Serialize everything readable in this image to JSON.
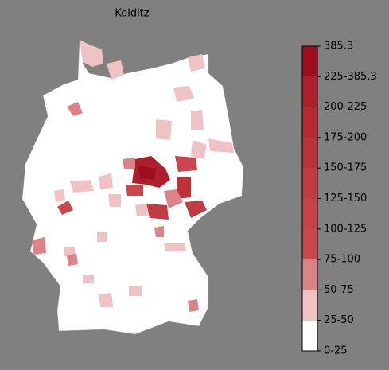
{
  "title": "Kolditz",
  "colorbar": {
    "labels": [
      "0-25",
      "25-50",
      "50-75",
      "75-100",
      "100-125",
      "125-150",
      "150-175",
      "175-200",
      "200-225",
      "225-385.3",
      "385.3"
    ],
    "colors": [
      "#ffffff",
      "#f0c2c3",
      "#dc8387",
      "#c9484d",
      "#c74248",
      "#c13b42",
      "#bb323a",
      "#b52a33",
      "#ad1f2b",
      "#9e0e1f"
    ]
  }
}
